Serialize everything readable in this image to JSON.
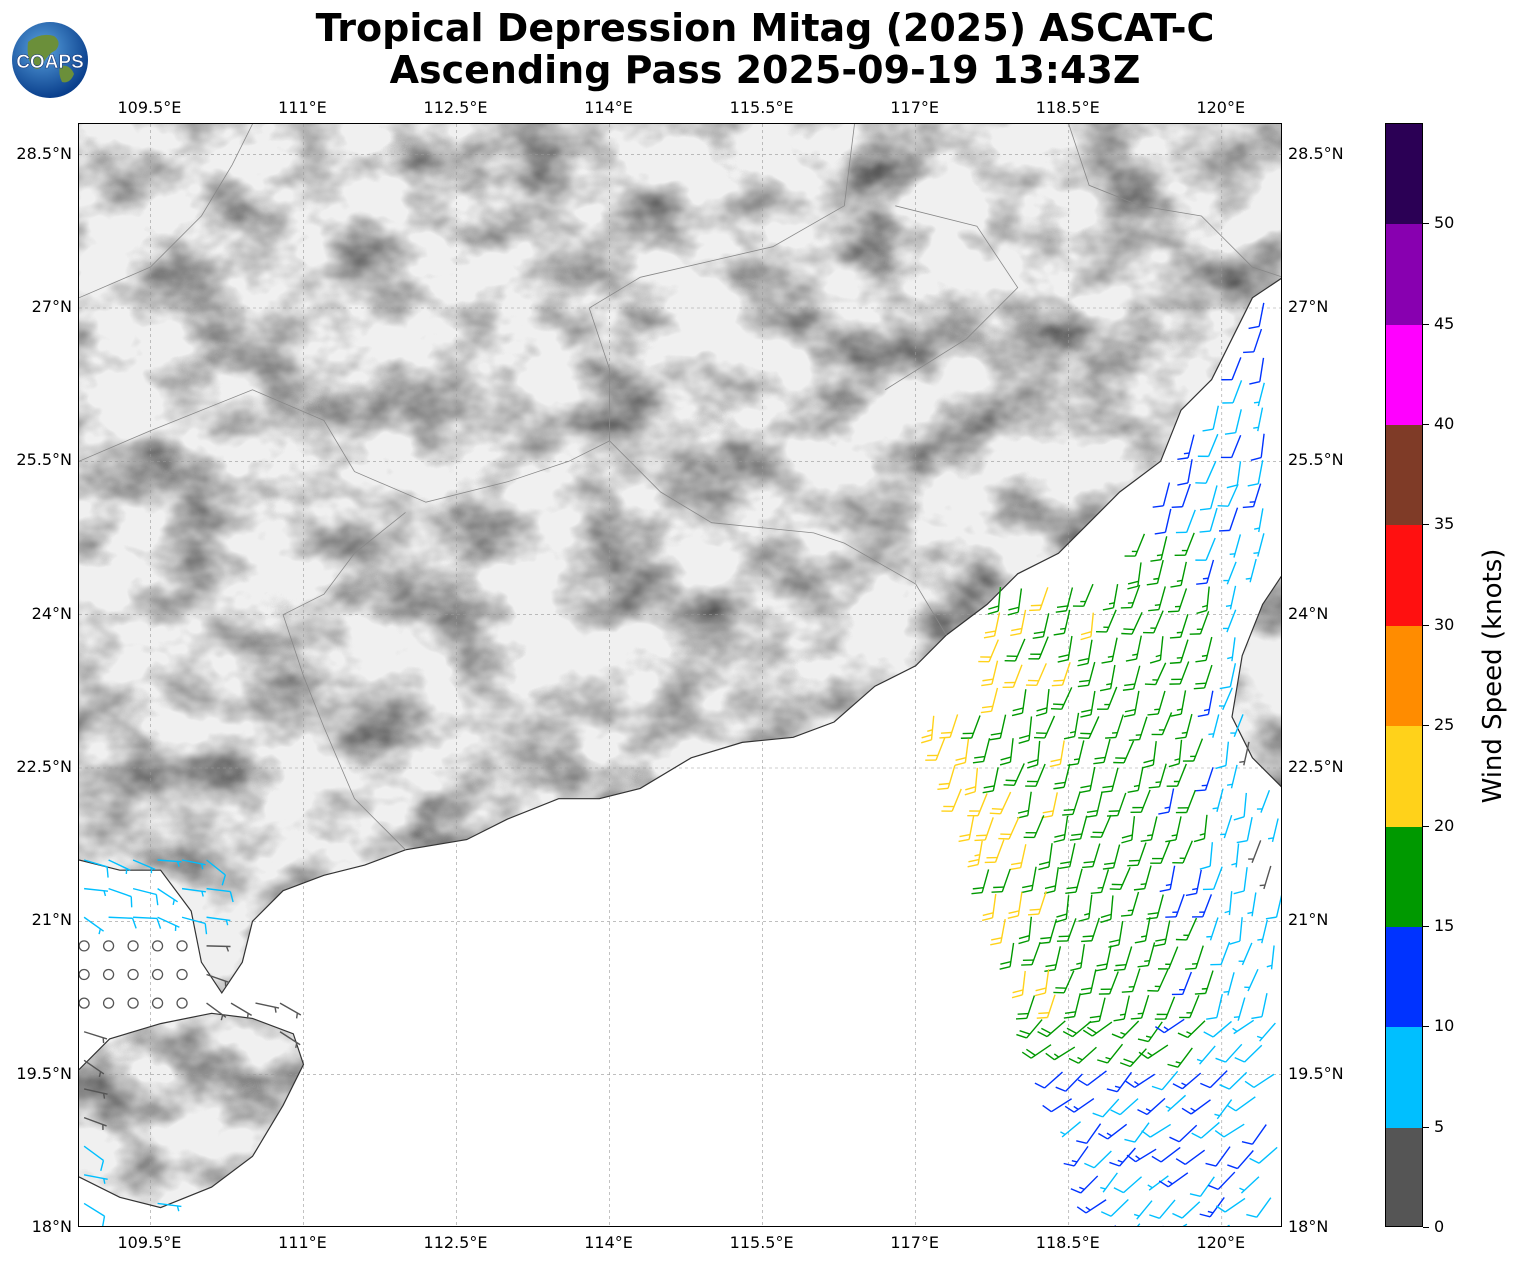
{
  "title": {
    "line1": "Tropical Depression Mitag (2025) ASCAT-C",
    "line2": "Ascending Pass 2025-09-19 13:43Z"
  },
  "logo": {
    "text": "COAPS",
    "icon": "globe-icon"
  },
  "map": {
    "lon_range": [
      108.8,
      120.6
    ],
    "lat_range": [
      18.0,
      28.8
    ],
    "lon_ticks": [
      "109.5°E",
      "111°E",
      "112.5°E",
      "114°E",
      "115.5°E",
      "117°E",
      "118.5°E",
      "120°E"
    ],
    "lat_ticks": [
      "28.5°N",
      "27°N",
      "25.5°N",
      "24°N",
      "22.5°N",
      "21°N",
      "19.5°N",
      "18°N"
    ],
    "grid": true,
    "land_shading": "grayscale terrain",
    "colors": {
      "land": "#f0f0f0",
      "relief": "#9a9a9a",
      "ocean": "#ffffff",
      "coastline": "#333333",
      "border": "#888888",
      "grid": "#999999"
    }
  },
  "colorbar": {
    "title": "Wind Speed (knots)",
    "ticks": [
      "0",
      "5",
      "10",
      "15",
      "20",
      "25",
      "30",
      "35",
      "40",
      "45",
      "50"
    ],
    "segments": [
      {
        "from": 0,
        "to": 5,
        "color": "#555555"
      },
      {
        "from": 5,
        "to": 10,
        "color": "#00bfff"
      },
      {
        "from": 10,
        "to": 15,
        "color": "#0033ff"
      },
      {
        "from": 15,
        "to": 20,
        "color": "#009900"
      },
      {
        "from": 20,
        "to": 25,
        "color": "#ffd21a"
      },
      {
        "from": 25,
        "to": 30,
        "color": "#ff8c00"
      },
      {
        "from": 30,
        "to": 35,
        "color": "#ff1010"
      },
      {
        "from": 35,
        "to": 40,
        "color": "#7f3b27"
      },
      {
        "from": 40,
        "to": 45,
        "color": "#ff00ff"
      },
      {
        "from": 45,
        "to": 50,
        "color": "#8800b0"
      },
      {
        "from": 50,
        "to": 55,
        "color": "#2b0055"
      }
    ],
    "range": [
      0,
      55
    ]
  },
  "wind_swaths": [
    {
      "name": "east-swath",
      "lon_range": [
        117.1,
        120.6
      ],
      "lat_range": [
        18.0,
        27.2
      ],
      "dominant_speeds_kt": "5-22"
    },
    {
      "name": "west-swath",
      "lon_range": [
        108.8,
        111.0
      ],
      "lat_range": [
        18.0,
        21.8
      ],
      "dominant_speeds_kt": "0-10"
    }
  ]
}
